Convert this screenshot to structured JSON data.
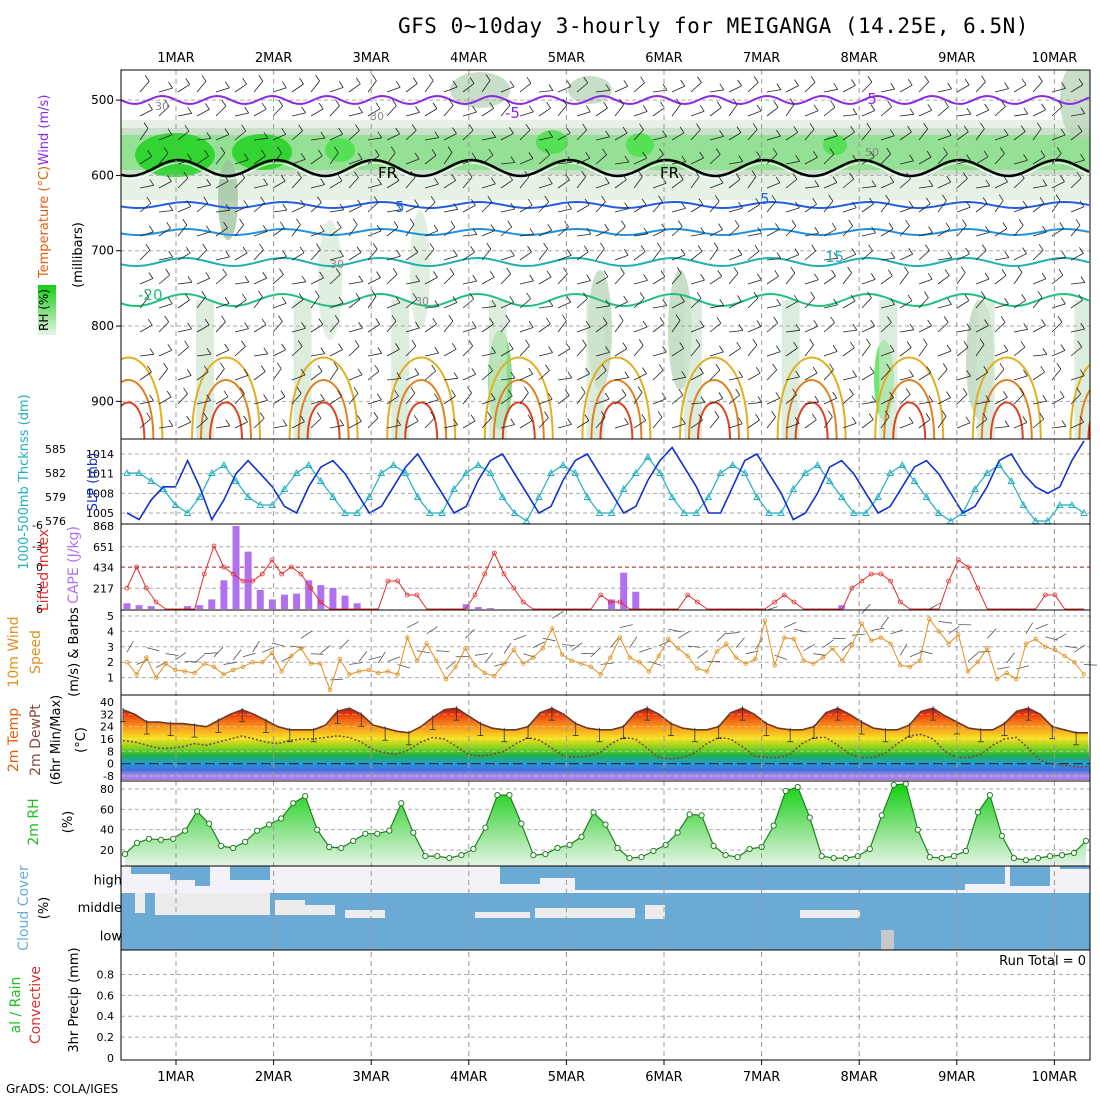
{
  "title": "GFS 0~10day 3-hourly for MEIGANGA (14.25E, 6.5N)",
  "credit": "GrADS: COLA/IGES",
  "colors": {
    "purple": "#8a2be2",
    "blue": "#2060e0",
    "cyan": "#20b0c0",
    "orange": "#e09020",
    "red": "#e03030",
    "green": "#20c020",
    "cloud": "#6aaad4",
    "gray": "#c8c8c8"
  },
  "chart_data": [
    {
      "panel": "upper-air",
      "type": "heatmap",
      "ylabel_parts": [
        "Wind (m/s)",
        "Temperature (°C)",
        "RH (%)"
      ],
      "yunit": "(millibars)",
      "yticks": [
        "500",
        "600",
        "700",
        "800",
        "900"
      ],
      "days": [
        "1MAR",
        "2MAR",
        "3MAR",
        "4MAR",
        "5MAR",
        "6MAR",
        "7MAR",
        "8MAR",
        "9MAR",
        "10MAR"
      ],
      "contour_labels": [
        "-5",
        "-5",
        "FR",
        "FR",
        "5",
        "5",
        "15",
        "-20",
        "30",
        "30",
        "30",
        "30",
        "50"
      ]
    },
    {
      "panel": "slp-thickness",
      "type": "line",
      "ylabel_left": "1000-500mb Thcknss (dm)",
      "ylabel_right": "SLP (mb)",
      "left_ticks": [
        "585",
        "582",
        "579",
        "576"
      ],
      "right_ticks": [
        "1014",
        "1011",
        "1008",
        "1005"
      ],
      "series": [
        {
          "name": "SLP (mb)",
          "values": [
            1005,
            1004,
            1007,
            1009,
            1009,
            1013,
            1009,
            1004,
            1007,
            1011,
            1013,
            1011,
            1009,
            1006,
            1005,
            1009,
            1012,
            1013,
            1011,
            1008,
            1005,
            1006,
            1009,
            1012,
            1014,
            1011,
            1008,
            1005,
            1006,
            1010,
            1013,
            1014,
            1011,
            1008,
            1005,
            1006,
            1010,
            1013,
            1014,
            1011,
            1008,
            1005,
            1006,
            1010,
            1013,
            1015,
            1012,
            1009,
            1005,
            1005,
            1009,
            1013,
            1014,
            1011,
            1008,
            1004,
            1005,
            1008,
            1012,
            1013,
            1011,
            1008,
            1005,
            1006,
            1009,
            1012,
            1013,
            1011,
            1008,
            1005,
            1006,
            1009,
            1013,
            1014,
            1011,
            1009,
            1008,
            1009,
            1013,
            1016
          ]
        },
        {
          "name": "1000-500mb Thickness (dm)",
          "values": [
            582,
            582,
            581,
            580,
            578,
            577,
            579,
            582,
            583,
            581,
            579,
            578,
            578,
            580,
            582,
            583,
            581,
            579,
            577,
            577,
            579,
            582,
            583,
            582,
            579,
            577,
            577,
            580,
            582,
            583,
            582,
            579,
            577,
            576,
            579,
            582,
            583,
            582,
            579,
            577,
            577,
            580,
            582,
            584,
            582,
            579,
            577,
            577,
            579,
            582,
            583,
            582,
            579,
            577,
            577,
            580,
            582,
            583,
            581,
            579,
            577,
            577,
            579,
            582,
            583,
            581,
            579,
            577,
            576,
            577,
            580,
            582,
            583,
            581,
            578,
            576,
            576,
            578,
            578,
            577
          ]
        }
      ]
    },
    {
      "panel": "cape-li",
      "type": "bar",
      "ylabel_left": "Lifted Index",
      "ylabel_right": "CAPE (J/kg)",
      "left_ticks": [
        "-6",
        "-3",
        "0",
        "3",
        "6"
      ],
      "right_ticks": [
        "868",
        "651",
        "434",
        "217"
      ],
      "cape": [
        60,
        40,
        30,
        0,
        0,
        30,
        40,
        100,
        300,
        868,
        600,
        200,
        100,
        150,
        160,
        300,
        250,
        220,
        140,
        60,
        0,
        0,
        0,
        0,
        0,
        0,
        0,
        0,
        50,
        20,
        10,
        0,
        0,
        0,
        0,
        0,
        0,
        0,
        0,
        0,
        100,
        380,
        180,
        0,
        0,
        0,
        0,
        0,
        0,
        0,
        0,
        0,
        0,
        0,
        0,
        0,
        0,
        0,
        0,
        40,
        0,
        0,
        0,
        0,
        0,
        0,
        0,
        0,
        0,
        0,
        0,
        0,
        0,
        0,
        0,
        0,
        0,
        0,
        0,
        0,
        0,
        0,
        0,
        0,
        0,
        0,
        0,
        0,
        0,
        0,
        0,
        0,
        0,
        0,
        0,
        0,
        0,
        0,
        0,
        0,
        0,
        0,
        0,
        0,
        0,
        0,
        0,
        0,
        0,
        0,
        0,
        0,
        0,
        0,
        0,
        0,
        0,
        0,
        0,
        0,
        0,
        0,
        0,
        0,
        0,
        0,
        0,
        0,
        0,
        0,
        0,
        0,
        0,
        0,
        0,
        0,
        0,
        0,
        0,
        0,
        0,
        0,
        0,
        0,
        0,
        0,
        0,
        0,
        0,
        0,
        0,
        0,
        0,
        0,
        0,
        0,
        0,
        0,
        0,
        0,
        0,
        0,
        0,
        0,
        0,
        0,
        0,
        0,
        0,
        0,
        0,
        0,
        0,
        0,
        0,
        0,
        0,
        0,
        0,
        0,
        0,
        0,
        0,
        0,
        0,
        0,
        0,
        0,
        0,
        0,
        0,
        0,
        0,
        0,
        0,
        0,
        0,
        0,
        0,
        0,
        0,
        0,
        0,
        0,
        0,
        0,
        0,
        0,
        0,
        0,
        0,
        0,
        0,
        0,
        0,
        0,
        0,
        0,
        0,
        0,
        0,
        0,
        0
      ],
      "li": [
        3,
        0,
        3,
        5,
        6,
        6,
        6,
        6,
        1,
        -3,
        0,
        1,
        2,
        2,
        1,
        -1,
        1,
        0,
        1,
        3,
        5,
        6,
        6,
        6,
        6,
        6,
        6,
        2,
        2,
        4,
        4,
        6,
        6,
        6,
        6,
        6,
        4,
        1,
        -2,
        1,
        3,
        5,
        6,
        6,
        6,
        6,
        6,
        6,
        6,
        4,
        5,
        5,
        6,
        6,
        6,
        6,
        6,
        6,
        4,
        5,
        6,
        6,
        6,
        6,
        6,
        6,
        6,
        5,
        4,
        5,
        6,
        6,
        6,
        6,
        6,
        3,
        2,
        1,
        1,
        2,
        5,
        6,
        6,
        6,
        6,
        2,
        -1,
        0,
        3,
        6,
        6,
        6,
        6,
        6,
        6,
        4,
        4,
        6,
        6,
        6
      ]
    },
    {
      "panel": "wind10m",
      "type": "line",
      "ylabel": "10m Wind Speed (m/s) & Barbs",
      "yticks": [
        "5",
        "4",
        "3",
        "2",
        "1"
      ],
      "values": [
        2.0,
        1.2,
        2.3,
        1.0,
        1.9,
        1.5,
        1.4,
        1.3,
        1.9,
        1.7,
        1.2,
        1.5,
        1.7,
        2.0,
        2.0,
        2.6,
        1.4,
        2.4,
        2.9,
        1.9,
        1.9,
        0.2,
        2.2,
        1.2,
        1.4,
        1.5,
        1.3,
        1.4,
        1.2,
        3.6,
        2.1,
        3.2,
        2.1,
        0.9,
        1.7,
        2.9,
        1.8,
        1.3,
        1.1,
        1.9,
        2.8,
        1.9,
        2.3,
        2.9,
        4.2,
        2.5,
        2.1,
        1.9,
        1.7,
        1.2,
        2.3,
        3.6,
        2.3,
        2.0,
        1.4,
        2.4,
        3.5,
        2.9,
        2.4,
        1.6,
        1.4,
        2.7,
        3.2,
        2.3,
        1.9,
        2.2,
        4.7,
        1.8,
        3.6,
        3.5,
        2.1,
        1.9,
        2.3,
        2.9,
        2.1,
        3.1,
        4.5,
        3.4,
        3.6,
        3.2,
        1.8,
        1.7,
        2.1,
        4.8,
        4.0,
        3.2,
        3.8,
        1.4,
        2.0,
        2.9,
        0.9,
        1.3,
        0.9,
        3.2,
        3.5,
        3.0,
        2.8,
        2.4,
        2.0,
        1.2
      ]
    },
    {
      "panel": "temp2m",
      "type": "area",
      "ylabel": "2m Temp 2m DewPt (6hr Min/Max) (°C)",
      "yticks": [
        "40",
        "32",
        "24",
        "16",
        "8",
        "0",
        "-8"
      ],
      "temp": [
        35,
        32,
        27,
        27,
        26,
        26,
        25,
        24,
        28,
        32,
        35,
        32,
        28,
        24,
        22,
        22,
        22,
        25,
        34,
        36,
        32,
        25,
        23,
        21,
        20,
        24,
        30,
        35,
        36,
        31,
        26,
        23,
        22,
        22,
        24,
        33,
        36,
        32,
        26,
        23,
        22,
        22,
        24,
        33,
        36,
        32,
        26,
        23,
        22,
        22,
        24,
        33,
        36,
        32,
        26,
        23,
        22,
        22,
        24,
        33,
        36,
        32,
        27,
        23,
        22,
        22,
        25,
        34,
        36,
        31,
        27,
        23,
        22,
        22,
        26,
        34,
        36,
        32,
        24,
        22,
        20,
        20
      ],
      "dewpt": [
        15,
        14,
        12,
        10,
        10,
        11,
        13,
        12,
        14,
        16,
        18,
        16,
        14,
        13,
        15,
        16,
        16,
        17,
        18,
        17,
        14,
        9,
        7,
        6,
        9,
        14,
        17,
        16,
        11,
        6,
        5,
        6,
        8,
        13,
        17,
        15,
        10,
        5,
        4,
        5,
        7,
        13,
        17,
        16,
        10,
        4,
        3,
        4,
        7,
        13,
        17,
        16,
        11,
        5,
        4,
        4,
        6,
        13,
        17,
        17,
        12,
        6,
        4,
        4,
        7,
        13,
        18,
        19,
        16,
        8,
        4,
        4,
        6,
        12,
        16,
        17,
        10,
        2,
        0,
        -1,
        -2,
        -2
      ]
    },
    {
      "panel": "rh2m",
      "type": "area",
      "ylabel": "2m RH",
      "yunit": "(%)",
      "yticks": [
        "80",
        "60",
        "40",
        "20"
      ],
      "values": [
        16,
        27,
        31,
        30,
        31,
        39,
        58,
        46,
        24,
        22,
        28,
        39,
        45,
        51,
        66,
        73,
        40,
        23,
        22,
        29,
        36,
        36,
        39,
        66,
        37,
        14,
        14,
        12,
        15,
        21,
        42,
        74,
        74,
        46,
        15,
        16,
        22,
        25,
        33,
        57,
        45,
        22,
        12,
        13,
        19,
        25,
        37,
        55,
        54,
        24,
        15,
        13,
        21,
        23,
        44,
        78,
        82,
        52,
        14,
        12,
        12,
        14,
        21,
        54,
        84,
        85,
        40,
        13,
        12,
        14,
        19,
        57,
        74,
        34,
        12,
        10,
        12,
        14,
        15,
        17,
        29
      ]
    },
    {
      "panel": "cloud",
      "type": "bar",
      "ylabel": "Cloud Cover (%)",
      "levels": [
        "high",
        "middle",
        "low"
      ]
    },
    {
      "panel": "precip",
      "type": "bar",
      "ylabel_left": "Total / Rain Convective",
      "ylabel": "3hr Precip (mm)",
      "yticks": [
        "0.8",
        "0.6",
        "0.4",
        "0.2",
        "0"
      ],
      "annotation": "Run Total = 0",
      "values": []
    }
  ]
}
